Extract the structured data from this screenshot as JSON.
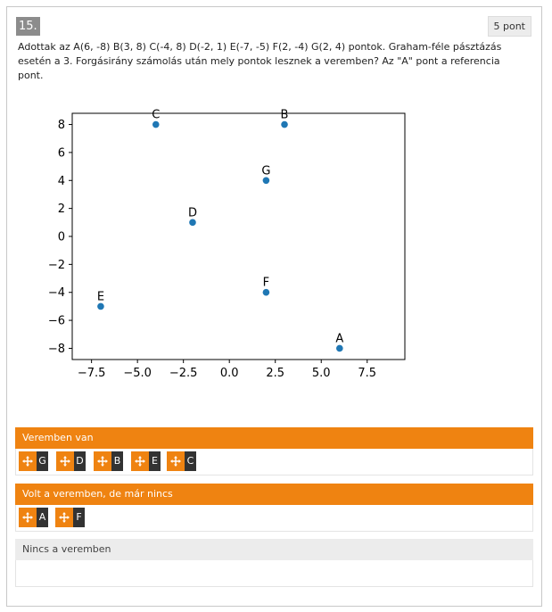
{
  "question": {
    "number": "15.",
    "points": "5 pont",
    "text": "Adottak az A(6, -8) B(3, 8) C(-4, 8) D(-2, 1) E(-7, -5) F(2, -4) G(2, 4) pontok. Graham-féle pásztázás esetén a 3. Forgásirány számolás után mely pontok lesznek a veremben? Az \"A\" pont a referencia pont."
  },
  "chart_data": {
    "type": "scatter",
    "points": [
      {
        "label": "A",
        "x": 6,
        "y": -8
      },
      {
        "label": "B",
        "x": 3,
        "y": 8
      },
      {
        "label": "C",
        "x": -4,
        "y": 8
      },
      {
        "label": "D",
        "x": -2,
        "y": 1
      },
      {
        "label": "E",
        "x": -7,
        "y": -5
      },
      {
        "label": "F",
        "x": 2,
        "y": -4
      },
      {
        "label": "G",
        "x": 2,
        "y": 4
      }
    ],
    "xlim": [
      -8.55,
      9.55
    ],
    "ylim": [
      -8.8,
      8.8
    ],
    "xticks": [
      -7.5,
      -5.0,
      -2.5,
      0.0,
      2.5,
      5.0,
      7.5
    ],
    "xtick_labels": [
      "−7.5",
      "−5.0",
      "−2.5",
      "0.0",
      "2.5",
      "5.0",
      "7.5"
    ],
    "yticks": [
      -8,
      -6,
      -4,
      -2,
      0,
      2,
      4,
      6,
      8
    ],
    "ytick_labels": [
      "−8",
      "−6",
      "−4",
      "−2",
      "0",
      "2",
      "4",
      "6",
      "8"
    ],
    "grid": false,
    "marker_color": "#1f77b4"
  },
  "groups": [
    {
      "title": "Veremben van",
      "items": [
        "G",
        "D",
        "B",
        "E",
        "C"
      ]
    },
    {
      "title": "Volt a veremben, de már nincs",
      "items": [
        "A",
        "F"
      ]
    },
    {
      "title": "Nincs a veremben",
      "items": []
    }
  ],
  "icons": {
    "drag_handle": "move-arrows-icon"
  },
  "colors": {
    "accent": "#ef8311",
    "chip_dark": "#333333",
    "marker": "#1f77b4"
  }
}
